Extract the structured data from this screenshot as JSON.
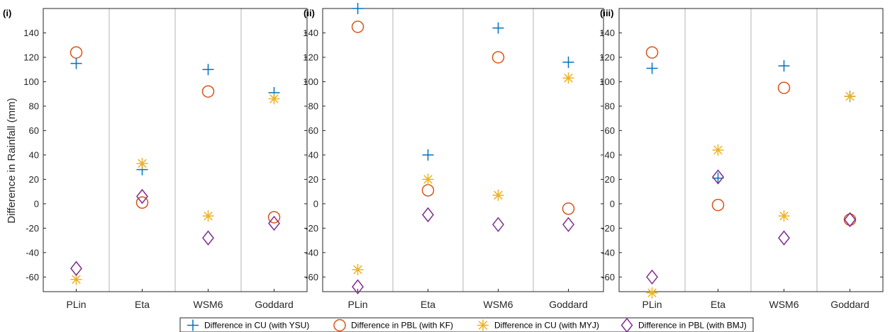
{
  "ylabel": "Difference in Rainfall (mm)",
  "colors": {
    "cu_ysu": "#0072BD",
    "pbl_kf": "#D95319",
    "cu_myj": "#EDB120",
    "pbl_bmj": "#7E2F8E"
  },
  "legend": [
    {
      "label": "Difference in CU (with YSU)",
      "marker": "plus-icon",
      "key": "cu_ysu"
    },
    {
      "label": "Difference in PBL (with KF)",
      "marker": "circle-icon",
      "key": "pbl_kf"
    },
    {
      "label": "Difference in CU (with MYJ)",
      "marker": "asterisk-icon",
      "key": "cu_myj"
    },
    {
      "label": "Difference in PBL (with BMJ)",
      "marker": "diamond-icon",
      "key": "pbl_bmj"
    }
  ],
  "chart_data": [
    {
      "type": "scatter",
      "panel_label": "(i)",
      "categories": [
        "PLin",
        "Eta",
        "WSM6",
        "Goddard"
      ],
      "ylim": [
        -72,
        160
      ],
      "yticks": [
        -60,
        -40,
        -20,
        0,
        20,
        40,
        60,
        80,
        100,
        120,
        140
      ],
      "ylabel": "Difference in Rainfall (mm)",
      "series": [
        {
          "name": "Difference in CU (with YSU)",
          "marker": "plus",
          "values": [
            115,
            28,
            110,
            91
          ]
        },
        {
          "name": "Difference in PBL (with KF)",
          "marker": "circle",
          "values": [
            124,
            1,
            92,
            -11
          ]
        },
        {
          "name": "Difference in CU (with MYJ)",
          "marker": "asterisk",
          "values": [
            -62,
            33,
            -10,
            86
          ]
        },
        {
          "name": "Difference in PBL (with BMJ)",
          "marker": "diamond",
          "values": [
            -53,
            6,
            -28,
            -16
          ]
        }
      ]
    },
    {
      "type": "scatter",
      "panel_label": "(ii)",
      "categories": [
        "PLin",
        "Eta",
        "WSM6",
        "Goddard"
      ],
      "ylim": [
        -72,
        160
      ],
      "yticks": [
        -60,
        -40,
        -20,
        0,
        20,
        40,
        60,
        80,
        100,
        120,
        140
      ],
      "ylabel": "",
      "series": [
        {
          "name": "Difference in CU (with YSU)",
          "marker": "plus",
          "values": [
            160,
            40,
            144,
            116
          ]
        },
        {
          "name": "Difference in PBL (with KF)",
          "marker": "circle",
          "values": [
            145,
            11,
            120,
            -4
          ]
        },
        {
          "name": "Difference in CU (with MYJ)",
          "marker": "asterisk",
          "values": [
            -54,
            20,
            7,
            103
          ]
        },
        {
          "name": "Difference in PBL (with BMJ)",
          "marker": "diamond",
          "values": [
            -68,
            -9,
            -17,
            -17
          ]
        }
      ]
    },
    {
      "type": "scatter",
      "panel_label": "(iii)",
      "categories": [
        "PLin",
        "Eta",
        "WSM6",
        "Goddard"
      ],
      "ylim": [
        -72,
        160
      ],
      "yticks": [
        -60,
        -40,
        -20,
        0,
        20,
        40,
        60,
        80,
        100,
        120,
        140
      ],
      "ylabel": "",
      "series": [
        {
          "name": "Difference in CU (with YSU)",
          "marker": "plus",
          "values": [
            111,
            21,
            113,
            88
          ]
        },
        {
          "name": "Difference in PBL (with KF)",
          "marker": "circle",
          "values": [
            124,
            -1,
            95,
            -13
          ]
        },
        {
          "name": "Difference in CU (with MYJ)",
          "marker": "asterisk",
          "values": [
            -73,
            44,
            -10,
            88
          ]
        },
        {
          "name": "Difference in PBL (with BMJ)",
          "marker": "diamond",
          "values": [
            -60,
            22,
            -28,
            -13
          ]
        }
      ]
    }
  ]
}
